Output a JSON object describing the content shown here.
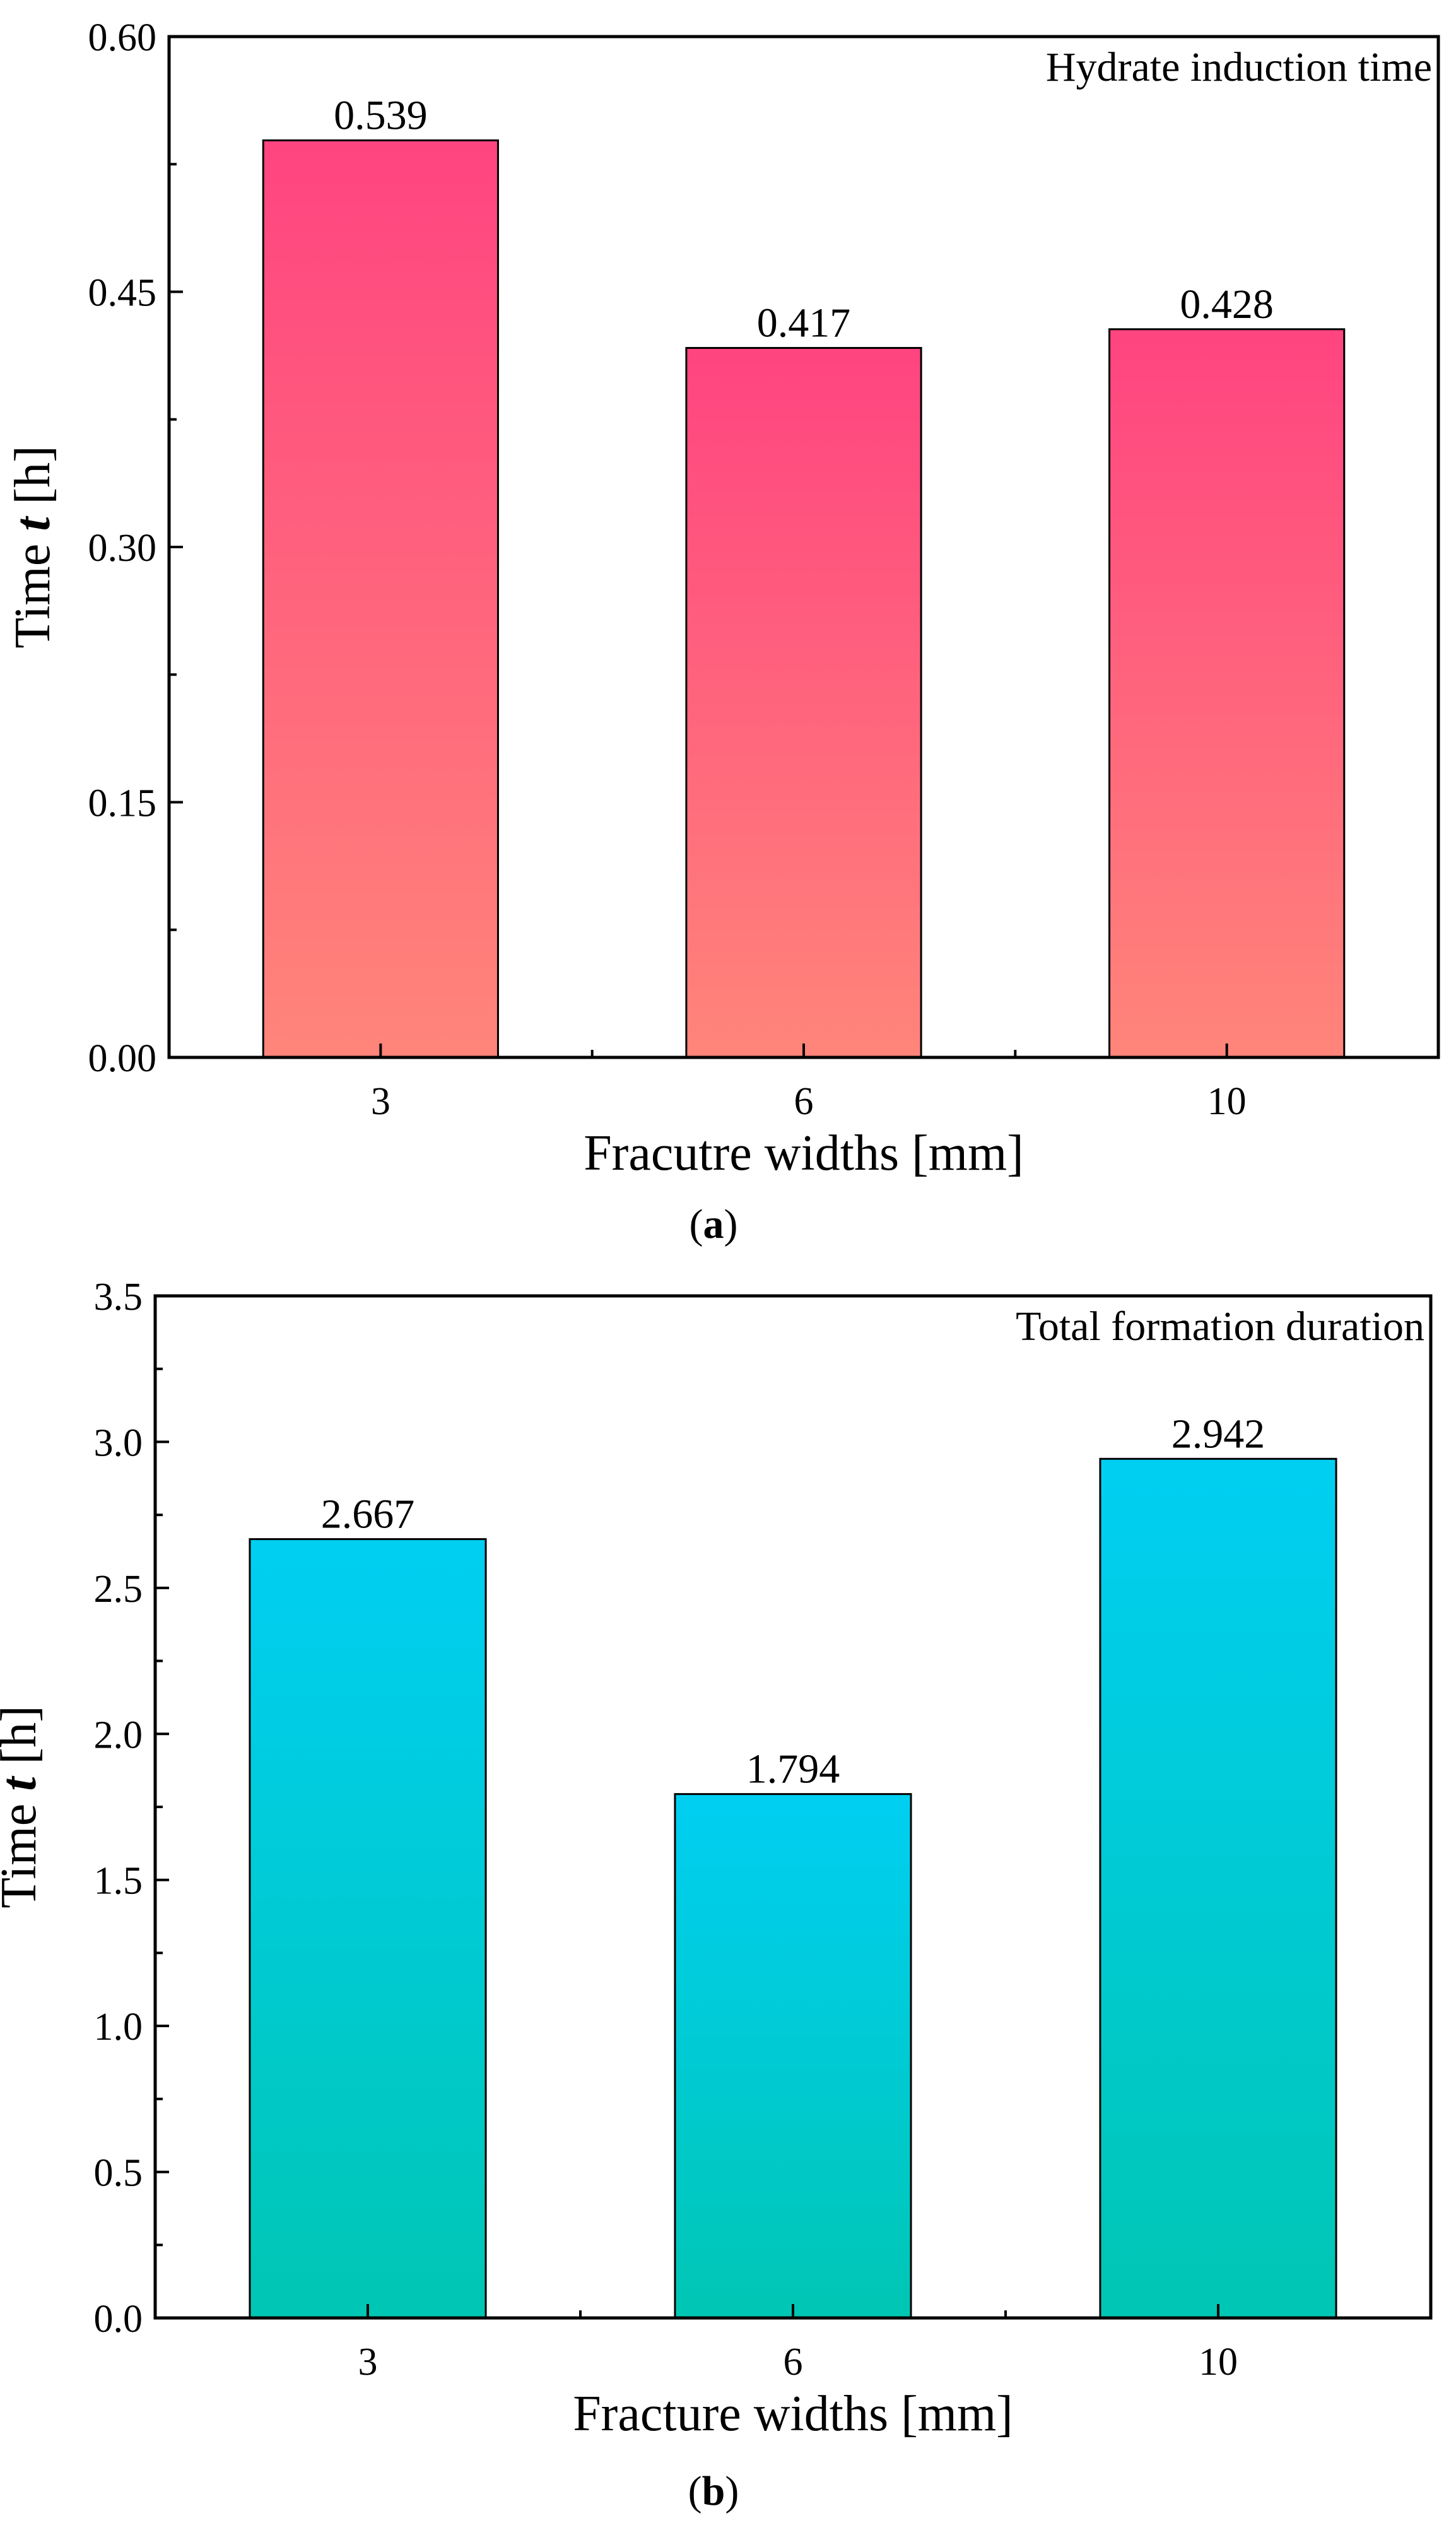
{
  "chart_data": [
    {
      "type": "bar",
      "panel_label": "a",
      "title": "Hydrate induction time",
      "xlabel": "Fracutre widths [mm]",
      "ylabel_prefix": "Time ",
      "ylabel_var": "t",
      "ylabel_suffix": " [h]",
      "categories": [
        "3",
        "6",
        "10"
      ],
      "values": [
        0.539,
        0.417,
        0.428
      ],
      "value_labels": [
        "0.539",
        "0.417",
        "0.428"
      ],
      "ylim": [
        0,
        0.6
      ],
      "yticks": [
        0.0,
        0.15,
        0.3,
        0.45,
        0.6
      ],
      "ytick_labels": [
        "0.00",
        "0.15",
        "0.30",
        "0.45",
        "0.60"
      ],
      "grid": false,
      "colors": {
        "top": "#ff4480",
        "bottom": "#ff857a"
      }
    },
    {
      "type": "bar",
      "panel_label": "b",
      "title": "Total formation duration",
      "xlabel": "Fracture widths [mm]",
      "ylabel_prefix": "Time ",
      "ylabel_var": "t",
      "ylabel_suffix": " [h]",
      "categories": [
        "3",
        "6",
        "10"
      ],
      "values": [
        2.667,
        1.794,
        2.942
      ],
      "value_labels": [
        "2.667",
        "1.794",
        "2.942"
      ],
      "ylim": [
        0,
        3.5
      ],
      "yticks": [
        0.0,
        0.5,
        1.0,
        1.5,
        2.0,
        2.5,
        3.0,
        3.5
      ],
      "ytick_labels": [
        "0.0",
        "0.5",
        "1.0",
        "1.5",
        "2.0",
        "2.5",
        "3.0",
        "3.5"
      ],
      "grid": false,
      "colors": {
        "top": "#00cff2",
        "bottom": "#00c6b4"
      }
    }
  ]
}
